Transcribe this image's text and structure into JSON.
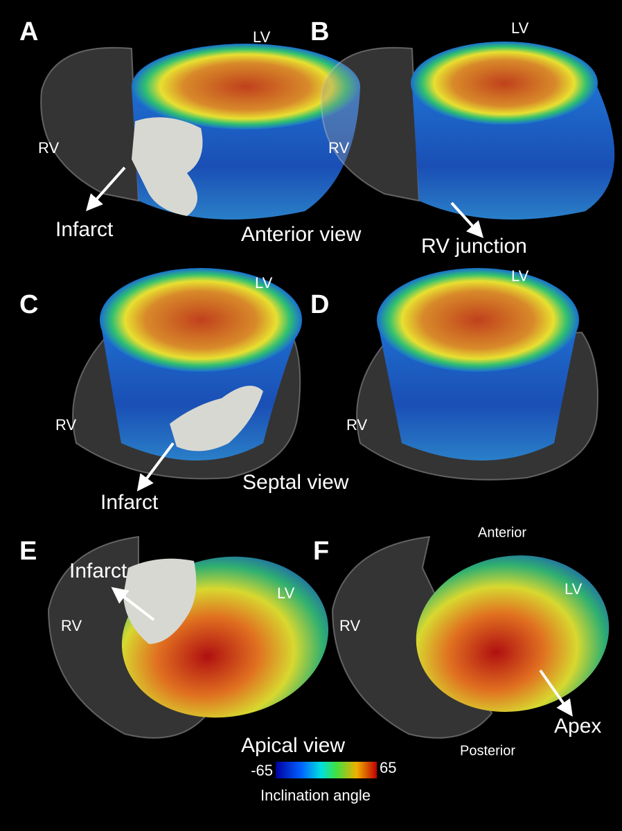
{
  "panels": [
    {
      "letter": "A",
      "labels": [
        "LV",
        "RV",
        "Infarct"
      ]
    },
    {
      "letter": "B",
      "labels": [
        "LV",
        "RV",
        "RV junction"
      ]
    },
    {
      "letter": "C",
      "labels": [
        "LV",
        "RV",
        "Infarct"
      ]
    },
    {
      "letter": "D",
      "labels": [
        "LV",
        "RV"
      ]
    },
    {
      "letter": "E",
      "labels": [
        "Infarct",
        "LV",
        "RV"
      ]
    },
    {
      "letter": "F",
      "labels": [
        "Anterior",
        "LV",
        "RV",
        "Apex",
        "Posterior"
      ]
    }
  ],
  "views": [
    "Anterior view",
    "Septal view",
    "Apical view"
  ],
  "colorbar": {
    "min": -65,
    "max": 65,
    "title": "Inclination angle"
  }
}
